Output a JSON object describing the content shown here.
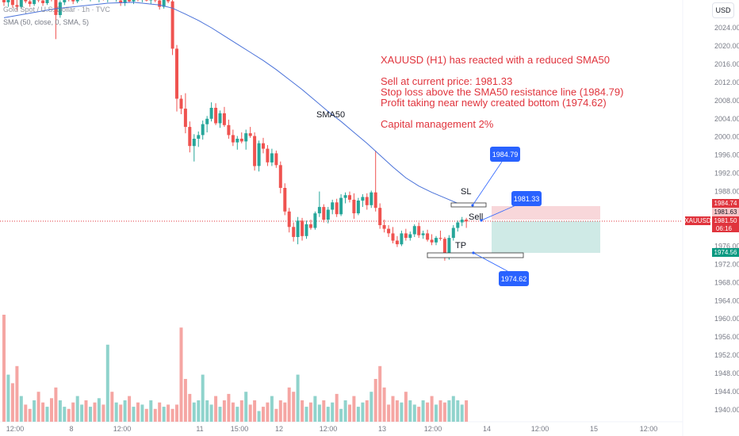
{
  "header": {
    "symbol_title": "Gold Spot / U.S. Dollar · 1h · TVC",
    "indicator_label": "SMA (50, close, 0, SMA, 5)",
    "currency_button": "USD"
  },
  "colors": {
    "up": "#26a69a",
    "down": "#ef5350",
    "sma": "#4a72d9",
    "annotation_text": "#e0343d",
    "callout_bg": "#2962ff",
    "sl_zone": "#f8d7da",
    "tp_zone": "#cfeae6",
    "sl_tag": "#e0343d",
    "tp_tag": "#089981",
    "vol_up": "#8fd3cc",
    "vol_down": "#f5a6a3"
  },
  "annotation": {
    "lines": [
      "XAUUSD (H1) has reacted with a reduced SMA50",
      "",
      "Sell at current price: 1981.33",
      "Stop loss above the SMA50 resistance line (1984.79)",
      "Profit taking near newly created bottom (1974.62)",
      "",
      "Capital management 2%"
    ]
  },
  "labels": {
    "sma_label": "SMA50",
    "sl_label": "SL",
    "tp_label": "TP",
    "sell_label": "Sell",
    "callout_sl": "1984.79",
    "callout_entry": "1981.33",
    "callout_tp": "1974.62"
  },
  "price_tags": {
    "sl_tag": "1984.74",
    "current_tag": "1981.63",
    "symbol_tag": "XAUUSD",
    "last_price": "1981.50",
    "countdown": "06:16",
    "tp_tag": "1974.56"
  },
  "chart_data": {
    "type": "candlestick",
    "symbol": "XAUUSD",
    "timeframe": "1h",
    "y_axis": {
      "range": [
        1938,
        2030
      ],
      "ticks": [
        2024.0,
        2020.0,
        2016.0,
        2012.0,
        2008.0,
        2004.0,
        2000.0,
        1996.0,
        1992.0,
        1988.0,
        1984.0,
        1980.0,
        1976.0,
        1972.0,
        1968.0,
        1964.0,
        1960.0,
        1956.0,
        1952.0,
        1948.0,
        1944.0,
        1940.0
      ]
    },
    "x_axis": {
      "tick_labels": [
        "12:00",
        "8",
        "12:00",
        "11",
        "15:00",
        "12",
        "12:00",
        "13",
        "12:00",
        "14",
        "12:00",
        "15",
        "12:00"
      ]
    },
    "candles_ohlc": [
      [
        2030.5,
        2031.5,
        2028.8,
        2029.6
      ],
      [
        2029.6,
        2031.0,
        2028.6,
        2030.4
      ],
      [
        2030.4,
        2031.2,
        2028.4,
        2029.0
      ],
      [
        2029.0,
        2030.2,
        2027.8,
        2028.6
      ],
      [
        2028.6,
        2030.8,
        2028.2,
        2030.2
      ],
      [
        2030.2,
        2031.4,
        2029.4,
        2029.8
      ],
      [
        2029.8,
        2030.6,
        2028.6,
        2029.2
      ],
      [
        2029.2,
        2031.2,
        2028.8,
        2030.6
      ],
      [
        2030.6,
        2031.6,
        2029.6,
        2030.0
      ],
      [
        2030.0,
        2030.8,
        2028.8,
        2029.4
      ],
      [
        2029.4,
        2031.0,
        2029.0,
        2030.8
      ],
      [
        2030.8,
        2031.8,
        2029.8,
        2030.2
      ],
      [
        2030.2,
        2031.0,
        2021.5,
        2026.8
      ],
      [
        2026.8,
        2030.0,
        2026.2,
        2029.6
      ],
      [
        2029.6,
        2031.4,
        2029.0,
        2030.8
      ],
      [
        2030.8,
        2031.6,
        2029.8,
        2030.4
      ],
      [
        2030.4,
        2031.2,
        2029.2,
        2029.8
      ],
      [
        2029.8,
        2031.0,
        2029.4,
        2030.6
      ],
      [
        2030.6,
        2031.8,
        2030.0,
        2031.2
      ],
      [
        2031.2,
        2032.0,
        2030.2,
        2030.6
      ],
      [
        2030.6,
        2031.4,
        2029.8,
        2031.0
      ],
      [
        2031.0,
        2031.8,
        2030.2,
        2030.4
      ],
      [
        2030.4,
        2031.2,
        2029.6,
        2030.8
      ],
      [
        2030.8,
        2031.6,
        2030.0,
        2030.2
      ],
      [
        2030.2,
        2031.2,
        2029.6,
        2030.9
      ],
      [
        2030.9,
        2031.6,
        2030.1,
        2030.5
      ],
      [
        2030.5,
        2031.3,
        2029.7,
        2031.0
      ],
      [
        2030.0,
        2031.0,
        2028.8,
        2029.4
      ],
      [
        2029.4,
        2030.8,
        2028.8,
        2030.4
      ],
      [
        2030.4,
        2031.2,
        2029.6,
        2029.8
      ],
      [
        2029.8,
        2031.0,
        2029.2,
        2030.6
      ],
      [
        2030.6,
        2031.6,
        2029.8,
        2030.2
      ],
      [
        2030.2,
        2031.2,
        2029.6,
        2030.8
      ],
      [
        2030.8,
        2031.4,
        2029.8,
        2030.0
      ],
      [
        2030.0,
        2030.8,
        2029.2,
        2030.6
      ],
      [
        2030.6,
        2031.2,
        2029.6,
        2030.0
      ],
      [
        2030.0,
        2030.8,
        2028.0,
        2028.6
      ],
      [
        2028.6,
        2030.6,
        2028.2,
        2030.2
      ],
      [
        2030.2,
        2031.0,
        2029.4,
        2029.8
      ],
      [
        2029.8,
        2030.4,
        2018.0,
        2019.4
      ],
      [
        2019.4,
        2020.2,
        2005.6,
        2008.4
      ],
      [
        2008.4,
        2009.2,
        2005.0,
        2006.2
      ],
      [
        2006.2,
        2009.6,
        2000.8,
        2002.2
      ],
      [
        2002.2,
        2003.4,
        1996.6,
        1998.0
      ],
      [
        1998.0,
        2000.6,
        1994.6,
        1999.6
      ],
      [
        1999.6,
        2001.2,
        1997.8,
        2000.4
      ],
      [
        2000.4,
        2003.6,
        1999.4,
        2002.8
      ],
      [
        2002.8,
        2004.6,
        2001.0,
        2004.0
      ],
      [
        2004.0,
        2007.6,
        2003.4,
        2006.4
      ],
      [
        2006.4,
        2007.4,
        2002.6,
        2003.0
      ],
      [
        2003.0,
        2005.8,
        2002.0,
        2005.2
      ],
      [
        2005.2,
        2006.6,
        2002.2,
        2002.6
      ],
      [
        2002.6,
        2003.8,
        1999.6,
        2000.4
      ],
      [
        2000.4,
        2001.6,
        1998.0,
        1998.8
      ],
      [
        1998.8,
        2000.2,
        1997.2,
        1999.6
      ],
      [
        1999.6,
        2001.0,
        1998.6,
        1999.0
      ],
      [
        1999.0,
        2001.6,
        1997.2,
        2000.8
      ],
      [
        2000.8,
        2002.2,
        1999.8,
        2000.2
      ],
      [
        2000.2,
        2001.0,
        1992.6,
        1993.6
      ],
      [
        1993.6,
        1999.2,
        1992.4,
        1998.6
      ],
      [
        1998.6,
        1999.8,
        1996.4,
        1997.4
      ],
      [
        1997.4,
        1998.2,
        1993.6,
        1994.4
      ],
      [
        1994.4,
        1997.4,
        1993.6,
        1996.4
      ],
      [
        1996.4,
        1997.0,
        1993.2,
        1993.8
      ],
      [
        1993.8,
        1994.6,
        1987.6,
        1988.8
      ],
      [
        1988.8,
        1989.8,
        1982.8,
        1983.6
      ],
      [
        1983.6,
        1984.4,
        1979.0,
        1980.2
      ],
      [
        1980.2,
        1981.2,
        1977.0,
        1978.0
      ],
      [
        1978.0,
        1982.4,
        1976.4,
        1981.6
      ],
      [
        1981.6,
        1982.2,
        1977.2,
        1978.2
      ],
      [
        1978.2,
        1981.6,
        1977.6,
        1980.8
      ],
      [
        1980.8,
        1981.8,
        1979.6,
        1980.0
      ],
      [
        1980.0,
        1983.6,
        1979.6,
        1983.2
      ],
      [
        1983.2,
        1988.0,
        1982.4,
        1984.6
      ],
      [
        1984.6,
        1985.2,
        1981.2,
        1981.8
      ],
      [
        1981.8,
        1984.6,
        1981.0,
        1984.0
      ],
      [
        1984.0,
        1986.2,
        1983.0,
        1985.6
      ],
      [
        1985.6,
        1986.4,
        1982.4,
        1983.0
      ],
      [
        1983.0,
        1987.4,
        1982.6,
        1986.6
      ],
      [
        1986.6,
        1987.8,
        1985.4,
        1987.2
      ],
      [
        1987.2,
        1988.0,
        1985.6,
        1986.2
      ],
      [
        1986.2,
        1987.6,
        1982.0,
        1983.2
      ],
      [
        1983.2,
        1986.6,
        1982.8,
        1986.0
      ],
      [
        1986.0,
        1987.4,
        1984.6,
        1986.8
      ],
      [
        1986.8,
        1987.6,
        1984.0,
        1985.0
      ],
      [
        1985.0,
        1988.2,
        1984.4,
        1987.8
      ],
      [
        1987.8,
        1997.0,
        1983.6,
        1984.4
      ],
      [
        1984.4,
        1985.4,
        1979.8,
        1980.6
      ],
      [
        1980.6,
        1981.8,
        1979.0,
        1979.8
      ],
      [
        1979.8,
        1980.6,
        1978.0,
        1978.8
      ],
      [
        1978.8,
        1980.2,
        1976.6,
        1977.2
      ],
      [
        1977.2,
        1978.2,
        1975.8,
        1976.4
      ],
      [
        1976.4,
        1979.4,
        1976.0,
        1978.8
      ],
      [
        1978.8,
        1979.8,
        1977.2,
        1977.8
      ],
      [
        1977.8,
        1979.2,
        1977.2,
        1978.6
      ],
      [
        1978.6,
        1980.8,
        1978.0,
        1980.4
      ],
      [
        1980.4,
        1981.2,
        1977.8,
        1978.4
      ],
      [
        1978.4,
        1979.4,
        1977.6,
        1978.8
      ],
      [
        1978.8,
        1979.6,
        1977.0,
        1977.4
      ],
      [
        1977.4,
        1978.6,
        1976.2,
        1976.8
      ],
      [
        1976.8,
        1978.2,
        1976.2,
        1977.8
      ],
      [
        1977.8,
        1979.4,
        1977.2,
        1977.6
      ],
      [
        1977.6,
        1978.0,
        1972.8,
        1973.8
      ],
      [
        1973.8,
        1978.4,
        1973.0,
        1977.8
      ],
      [
        1977.8,
        1980.6,
        1977.2,
        1980.0
      ],
      [
        1980.0,
        1981.6,
        1979.2,
        1981.2
      ],
      [
        1981.2,
        1982.4,
        1980.4,
        1981.8
      ],
      [
        1981.8,
        1982.2,
        1980.0,
        1981.4
      ]
    ],
    "sma50": [
      [
        0,
        2026.2
      ],
      [
        6,
        2027.2
      ],
      [
        12,
        2028.2
      ],
      [
        18,
        2028.8
      ],
      [
        24,
        2029.4
      ],
      [
        30,
        2029.6
      ],
      [
        36,
        2029.0
      ],
      [
        39,
        2028.3
      ],
      [
        42,
        2027.0
      ],
      [
        45,
        2025.6
      ],
      [
        48,
        2024.0
      ],
      [
        51,
        2022.2
      ],
      [
        54,
        2020.4
      ],
      [
        57,
        2018.6
      ],
      [
        60,
        2016.8
      ],
      [
        63,
        2014.8
      ],
      [
        66,
        2012.6
      ],
      [
        69,
        2010.4
      ],
      [
        72,
        2008.0
      ],
      [
        75,
        2005.6
      ],
      [
        78,
        2003.4
      ],
      [
        81,
        2001.0
      ],
      [
        84,
        1998.6
      ],
      [
        87,
        1996.0
      ],
      [
        90,
        1993.4
      ],
      [
        93,
        1991.0
      ],
      [
        96,
        1989.2
      ],
      [
        99,
        1987.8
      ],
      [
        102,
        1986.6
      ],
      [
        105,
        1985.4
      ],
      [
        107,
        1984.8
      ]
    ],
    "volumes": [
      50,
      22,
      18,
      26,
      12,
      8,
      6,
      10,
      14,
      9,
      7,
      11,
      16,
      10,
      7,
      6,
      9,
      12,
      8,
      10,
      7,
      9,
      11,
      8,
      36,
      14,
      9,
      8,
      10,
      12,
      7,
      9,
      8,
      6,
      10,
      6,
      9,
      7,
      8,
      6,
      8,
      44,
      20,
      13,
      9,
      10,
      22,
      10,
      8,
      12,
      7,
      10,
      13,
      9,
      7,
      10,
      14,
      8,
      10,
      5,
      7,
      9,
      12,
      6,
      10,
      9,
      16,
      14,
      22,
      10,
      7,
      9,
      12,
      8,
      10,
      7,
      9,
      13,
      6,
      10,
      8,
      12,
      7,
      9,
      10,
      14,
      20,
      26,
      16,
      8,
      12,
      10,
      9,
      14,
      10,
      8,
      7,
      10,
      9,
      12,
      8,
      10,
      9,
      10,
      12,
      10,
      8,
      10
    ],
    "trade": {
      "entry": 1981.33,
      "stop_loss": 1984.79,
      "take_profit": 1974.62
    }
  }
}
